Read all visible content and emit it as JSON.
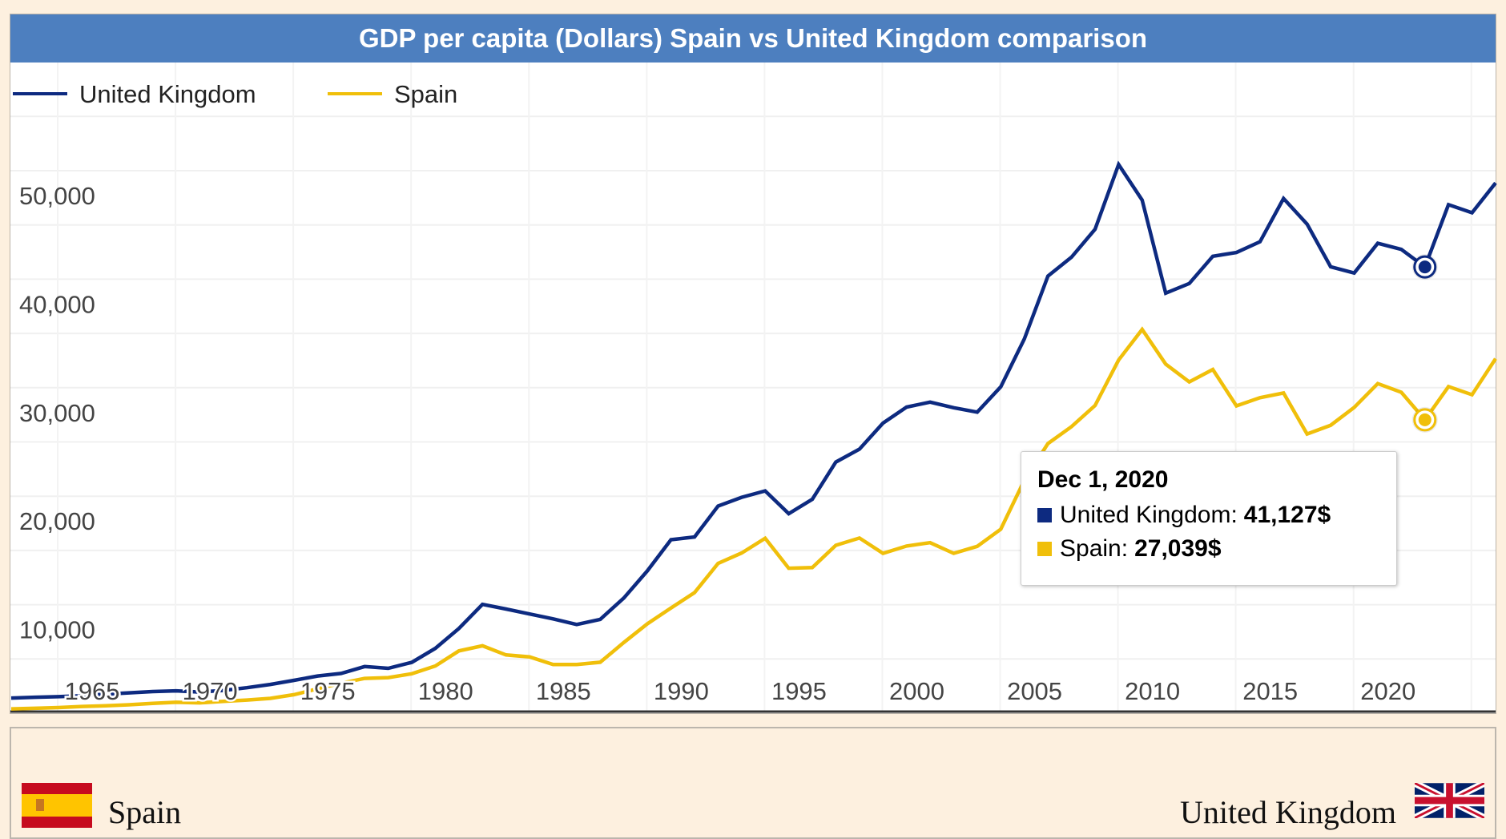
{
  "page": {
    "title": "GDP per capita (Dollars) Spain vs United Kingdom comparison",
    "colors": {
      "title_bar": "#4d7fbf",
      "uk": "#0d2a80",
      "spain": "#f0bf0a",
      "background": "#fdf0df"
    }
  },
  "tooltip": {
    "date": "Dec 1, 2020",
    "rows": [
      {
        "label": "United Kingdom:",
        "value": "41,127$",
        "color": "#0d2a80"
      },
      {
        "label": "Spain:",
        "value": "27,039$",
        "color": "#f0bf0a"
      }
    ]
  },
  "bottom": {
    "left_country": "Spain",
    "left_flag_icon": "spain-flag-icon",
    "right_country": "United Kingdom",
    "right_flag_icon": "uk-flag-icon"
  },
  "chart_data": {
    "type": "line",
    "title": "GDP per capita (Dollars) Spain vs United Kingdom comparison",
    "xlabel": "",
    "ylabel": "",
    "xlim": [
      1960,
      2023
    ],
    "ylim": [
      0,
      50000
    ],
    "grid": true,
    "legend_position": "top-left",
    "y_ticks": [
      10000,
      20000,
      30000,
      40000,
      50000
    ],
    "y_tick_labels": [
      "10,000",
      "20,000",
      "30,000",
      "40,000",
      "50,000"
    ],
    "x_ticks": [
      1965,
      1970,
      1975,
      1980,
      1985,
      1990,
      1995,
      2000,
      2005,
      2010,
      2015,
      2020
    ],
    "x_tick_labels": [
      "1965",
      "1970",
      "1975",
      "1980",
      "1985",
      "1990",
      "1995",
      "2000",
      "2005",
      "2010",
      "2015",
      "2020"
    ],
    "highlight_x": 2020,
    "series": [
      {
        "name": "United Kingdom",
        "color": "#0d2a80",
        "x": [
          1960,
          1961,
          1962,
          1963,
          1964,
          1965,
          1966,
          1967,
          1968,
          1969,
          1970,
          1971,
          1972,
          1973,
          1974,
          1975,
          1976,
          1977,
          1978,
          1979,
          1980,
          1981,
          1982,
          1983,
          1984,
          1985,
          1986,
          1987,
          1988,
          1989,
          1990,
          1991,
          1992,
          1993,
          1994,
          1995,
          1996,
          1997,
          1998,
          1999,
          2000,
          2001,
          2002,
          2003,
          2004,
          2005,
          2006,
          2007,
          2008,
          2009,
          2010,
          2011,
          2012,
          2013,
          2014,
          2015,
          2016,
          2017,
          2018,
          2019,
          2020,
          2021,
          2022,
          2023
        ],
        "values": [
          1398,
          1472,
          1525,
          1613,
          1748,
          1874,
          1992,
          2058,
          1952,
          2101,
          2348,
          2649,
          3030,
          3427,
          3666,
          4300,
          4139,
          4681,
          5977,
          7805,
          10032,
          9599,
          9146,
          8692,
          8179,
          8652,
          10611,
          13119,
          15987,
          16239,
          19095,
          19900,
          20487,
          18389,
          19710,
          23148,
          24337,
          26735,
          28214,
          28670,
          28150,
          27744,
          30078,
          34488,
          40291,
          42033,
          44599,
          50566,
          47287,
          38713,
          39599,
          42109,
          42463,
          43449,
          47440,
          45071,
          41146,
          40572,
          43306,
          42747,
          41127,
          46870,
          46125,
          48867
        ]
      },
      {
        "name": "Spain",
        "color": "#f0bf0a",
        "x": [
          1960,
          1961,
          1962,
          1963,
          1964,
          1965,
          1966,
          1967,
          1968,
          1969,
          1970,
          1971,
          1972,
          1973,
          1974,
          1975,
          1976,
          1977,
          1978,
          1979,
          1980,
          1981,
          1982,
          1983,
          1984,
          1985,
          1986,
          1987,
          1988,
          1989,
          1990,
          1991,
          1992,
          1993,
          1994,
          1995,
          1996,
          1997,
          1998,
          1999,
          2000,
          2001,
          2002,
          2003,
          2004,
          2005,
          2006,
          2007,
          2008,
          2009,
          2010,
          2011,
          2012,
          2013,
          2014,
          2015,
          2016,
          2017,
          2018,
          2019,
          2020,
          2021,
          2022,
          2023
        ],
        "values": [
          396,
          449,
          520,
          617,
          680,
          775,
          903,
          1001,
          955,
          1085,
          1212,
          1363,
          1709,
          2242,
          2759,
          3209,
          3277,
          3632,
          4348,
          5739,
          6208,
          5371,
          5193,
          4483,
          4487,
          4700,
          6513,
          8233,
          9699,
          11114,
          13805,
          14764,
          16125,
          13362,
          13419,
          15474,
          16144,
          14735,
          15409,
          15715,
          14735,
          15380,
          16955,
          21472,
          24849,
          26409,
          28363,
          32550,
          35366,
          32170,
          30532,
          31678,
          28324,
          29077,
          29513,
          25732,
          26537,
          28185,
          30379,
          29581,
          27039,
          30104,
          29350,
          32677
        ]
      }
    ]
  }
}
